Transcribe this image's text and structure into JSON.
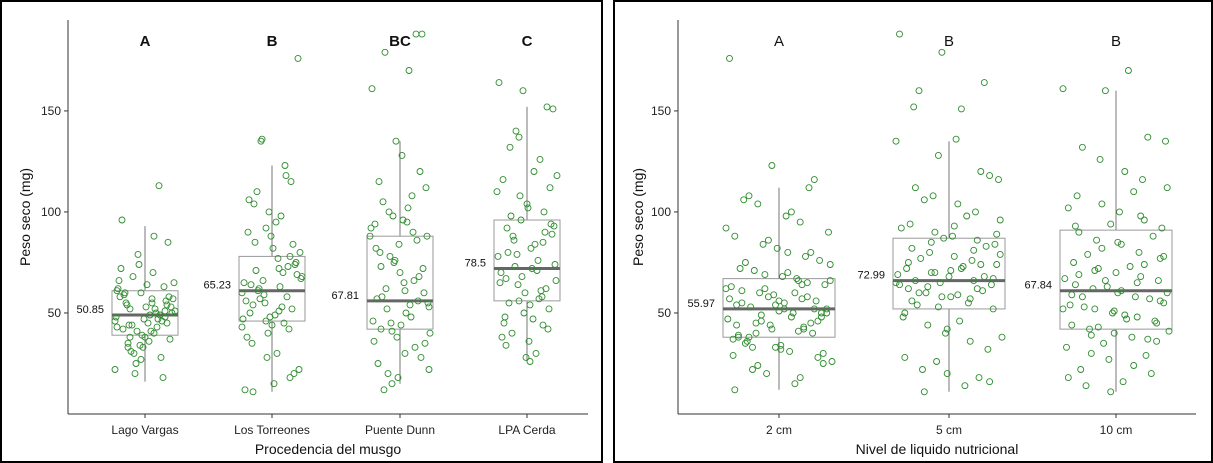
{
  "chart_data": [
    {
      "type": "box",
      "title": "",
      "xlabel": "Procedencia del musgo",
      "ylabel": "Peso seco (mg)",
      "ylim": [
        0,
        195
      ],
      "yticks": [
        50,
        100,
        150
      ],
      "letters_bold": true,
      "categories": [
        "Lago Vargas",
        "Los Torreones",
        "Puente Dunn",
        "LPA Cerda"
      ],
      "letters": [
        "A",
        "B",
        "BC",
        "C"
      ],
      "means": [
        "50.85",
        "65.23",
        "67.81",
        "78.5"
      ],
      "boxes": [
        {
          "min": 16,
          "q1": 39,
          "median": 49,
          "q3": 61,
          "max": 93
        },
        {
          "min": 11,
          "q1": 46,
          "median": 61,
          "q3": 78,
          "max": 123
        },
        {
          "min": 15,
          "q1": 42,
          "median": 56,
          "q3": 88,
          "max": 135
        },
        {
          "min": 26,
          "q1": 56,
          "median": 72,
          "q3": 96,
          "max": 152
        }
      ],
      "points": [
        [
          22,
          55,
          35,
          48,
          27,
          61,
          40,
          52,
          45,
          33,
          66,
          50,
          44,
          58,
          38,
          72,
          47,
          30,
          53,
          64,
          42,
          49,
          25,
          57,
          36,
          60,
          46,
          79,
          51,
          41,
          54,
          63,
          34,
          48,
          70,
          44,
          56,
          39,
          62,
          52,
          31,
          85,
          47,
          58,
          43,
          68,
          37,
          53,
          96,
          113,
          20,
          50,
          45,
          59,
          28,
          41,
          65,
          49,
          55,
          18,
          74,
          46,
          57,
          33,
          51,
          60,
          43,
          88,
          38,
          54
        ],
        [
          11,
          18,
          46,
          60,
          72,
          85,
          52,
          40,
          65,
          98,
          110,
          20,
          48,
          56,
          70,
          62,
          75,
          44,
          90,
          123,
          135,
          176,
          15,
          50,
          58,
          66,
          80,
          95,
          35,
          42,
          55,
          68,
          77,
          104,
          115,
          28,
          47,
          63,
          71,
          84,
          100,
          12,
          53,
          61,
          74,
          88,
          38,
          45,
          57,
          69,
          82,
          106,
          118,
          136,
          22,
          49,
          64,
          73,
          59,
          67,
          30,
          54,
          78,
          92,
          43,
          51
        ],
        [
          15,
          22,
          30,
          42,
          56,
          75,
          88,
          95,
          105,
          120,
          135,
          161,
          170,
          179,
          188,
          18,
          36,
          48,
          52,
          60,
          70,
          82,
          90,
          100,
          112,
          128,
          25,
          33,
          45,
          55,
          65,
          80,
          86,
          98,
          40,
          50,
          58,
          68,
          76,
          92,
          102,
          12,
          28,
          38,
          46,
          54,
          62,
          72,
          84,
          94,
          108,
          20,
          35,
          44,
          57,
          66,
          78,
          88,
          96,
          115,
          188,
          41,
          53,
          61,
          73
        ],
        [
          26,
          34,
          44,
          56,
          66,
          72,
          80,
          90,
          96,
          110,
          120,
          132,
          152,
          160,
          164,
          30,
          40,
          52,
          60,
          70,
          76,
          86,
          94,
          104,
          116,
          126,
          140,
          151,
          36,
          48,
          58,
          64,
          74,
          82,
          92,
          100,
          108,
          118,
          47,
          55,
          62,
          68,
          78,
          84,
          98,
          42,
          50,
          65,
          71,
          88,
          112,
          28,
          38,
          57,
          73,
          89,
          102,
          45,
          61,
          79,
          93,
          54,
          67,
          85,
          137
        ]
      ]
    },
    {
      "type": "box",
      "title": "",
      "xlabel": "Nivel de liquido nutricional",
      "ylabel": "Peso seco (mg)",
      "ylim": [
        0,
        195
      ],
      "yticks": [
        50,
        100,
        150
      ],
      "letters_bold": false,
      "categories": [
        "2 cm",
        "5 cm",
        "10 cm"
      ],
      "letters": [
        "A",
        "B",
        "B"
      ],
      "means": [
        "55.97",
        "72.99",
        "67.84"
      ],
      "boxes": [
        {
          "min": 12,
          "q1": 38,
          "median": 52,
          "q3": 67,
          "max": 112
        },
        {
          "min": 11,
          "q1": 52,
          "median": 66,
          "q3": 87,
          "max": 135
        },
        {
          "min": 11,
          "q1": 42,
          "median": 61,
          "q3": 91,
          "max": 160
        }
      ],
      "points": [
        [
          12,
          18,
          24,
          30,
          34,
          38,
          42,
          46,
          50,
          52,
          55,
          58,
          62,
          66,
          70,
          75,
          80,
          86,
          92,
          100,
          108,
          116,
          123,
          176,
          15,
          22,
          28,
          33,
          37,
          41,
          45,
          48,
          51,
          54,
          57,
          60,
          64,
          68,
          72,
          78,
          84,
          90,
          98,
          106,
          112,
          20,
          26,
          31,
          36,
          40,
          44,
          47,
          50,
          53,
          56,
          59,
          63,
          67,
          71,
          76,
          82,
          88,
          95,
          104,
          25,
          32,
          39,
          43,
          49,
          52,
          55,
          61,
          65,
          69,
          74,
          80,
          35,
          45,
          58,
          62,
          48,
          38,
          52,
          42,
          57,
          60,
          33,
          46,
          54,
          29,
          66,
          40,
          50,
          56,
          44,
          64
        ],
        [
          11,
          16,
          20,
          28,
          36,
          44,
          52,
          58,
          62,
          66,
          70,
          74,
          78,
          82,
          86,
          90,
          96,
          104,
          112,
          120,
          128,
          135,
          151,
          160,
          164,
          179,
          188,
          14,
          22,
          32,
          40,
          48,
          55,
          60,
          64,
          68,
          72,
          76,
          80,
          84,
          88,
          94,
          100,
          108,
          116,
          136,
          152,
          18,
          26,
          38,
          46,
          54,
          61,
          65,
          69,
          73,
          77,
          83,
          87,
          92,
          98,
          106,
          118,
          42,
          50,
          57,
          63,
          67,
          71,
          75,
          81,
          85,
          89,
          93,
          56,
          62,
          70,
          79,
          59,
          66,
          74,
          53,
          65,
          72,
          60,
          68,
          58,
          64
        ],
        [
          11,
          18,
          24,
          30,
          36,
          40,
          44,
          48,
          52,
          56,
          60,
          64,
          68,
          72,
          78,
          84,
          90,
          96,
          104,
          112,
          120,
          132,
          137,
          160,
          161,
          170,
          14,
          20,
          27,
          33,
          38,
          42,
          46,
          50,
          54,
          58,
          62,
          66,
          70,
          75,
          80,
          86,
          92,
          100,
          108,
          116,
          126,
          135,
          16,
          22,
          29,
          35,
          41,
          47,
          53,
          57,
          63,
          67,
          73,
          79,
          88,
          94,
          102,
          110,
          39,
          45,
          51,
          59,
          65,
          71,
          77,
          85,
          93,
          98,
          43,
          55,
          61,
          69,
          74,
          82,
          60,
          49,
          58,
          37,
          66,
          52
        ]
      ]
    }
  ]
}
